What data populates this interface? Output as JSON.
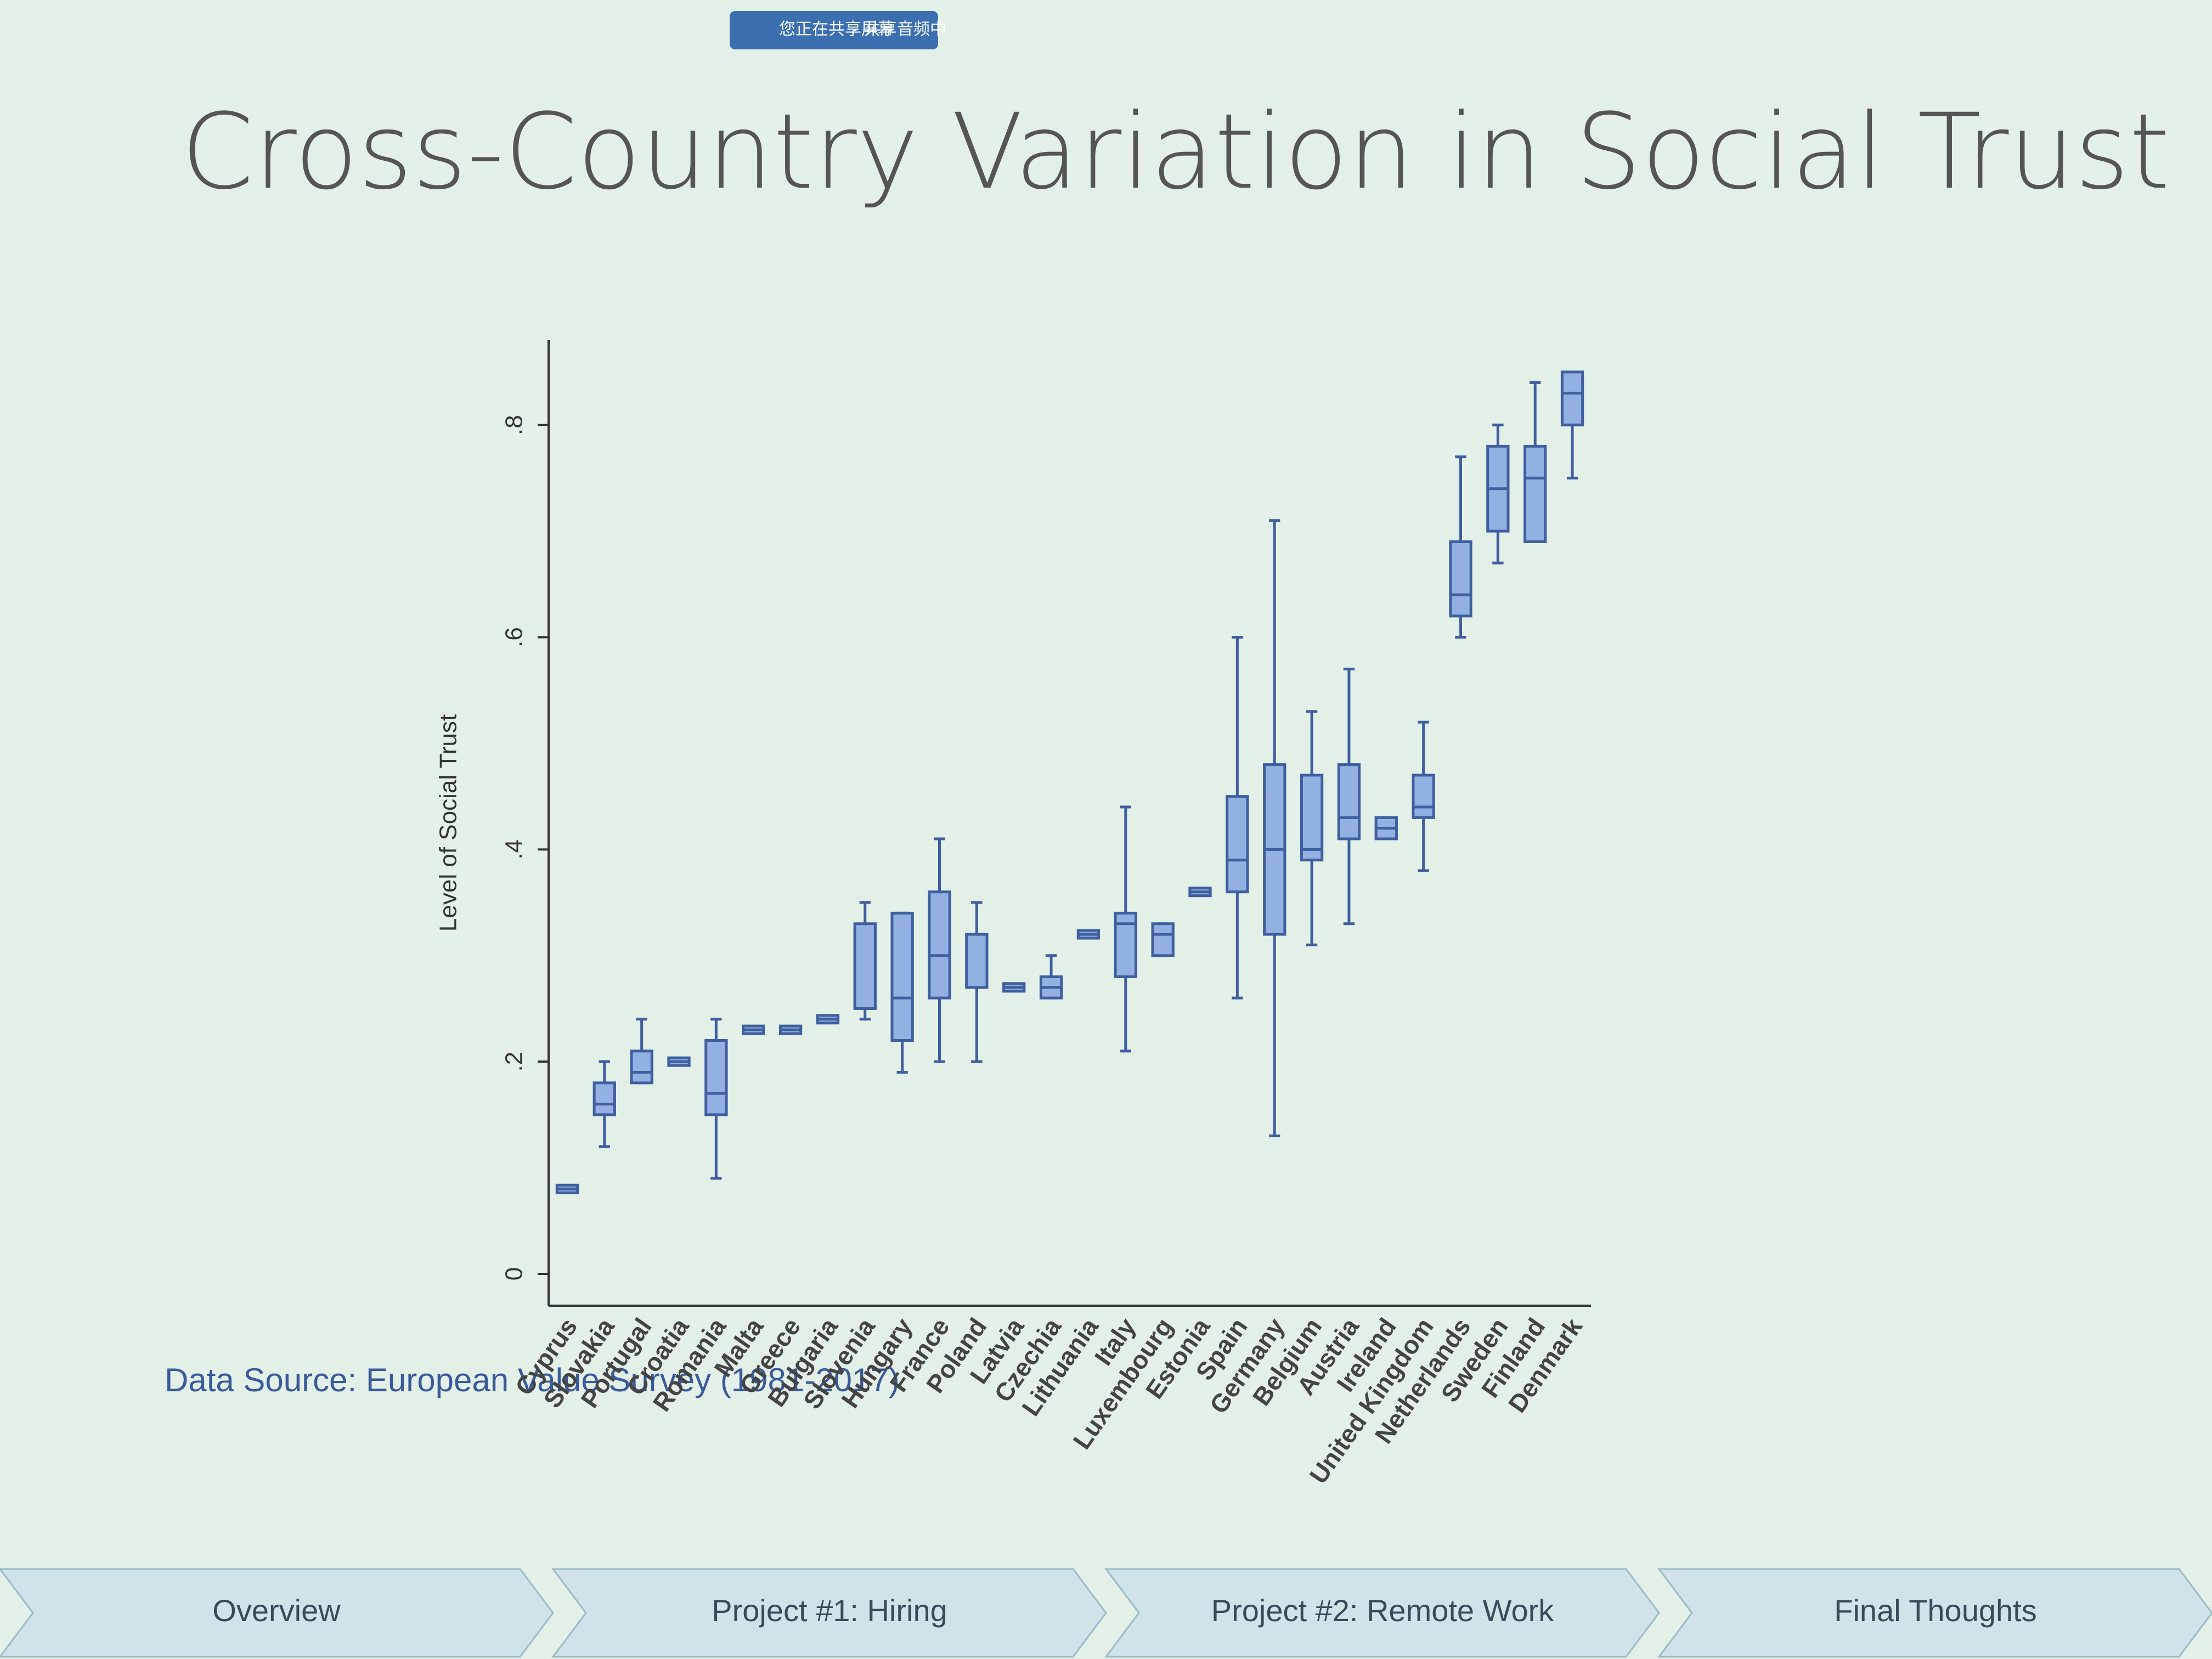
{
  "chart_data": {
    "type": "box",
    "title": "Cross-Country Variation in Social Trust",
    "ylabel": "Level of Social Trust",
    "source_note": "Data Source: European Value Survey (1981-2017)",
    "categories": [
      "Cyprus",
      "Slovakia",
      "Portugal",
      "Croatia",
      "Romania",
      "Malta",
      "Greece",
      "Bulgaria",
      "Slovenia",
      "Hungary",
      "France",
      "Poland",
      "Latvia",
      "Czechia",
      "Lithuania",
      "Italy",
      "Luxembourg",
      "Estonia",
      "Spain",
      "Germany",
      "Belgium",
      "Austria",
      "Ireland",
      "United Kingdom",
      "Netherlands",
      "Sweden",
      "Finland",
      "Denmark"
    ],
    "min": [
      0.08,
      0.12,
      0.18,
      0.2,
      0.09,
      0.23,
      0.23,
      0.24,
      0.24,
      0.19,
      0.2,
      0.2,
      0.27,
      0.26,
      0.32,
      0.21,
      0.3,
      0.36,
      0.26,
      0.13,
      0.31,
      0.33,
      0.41,
      0.38,
      0.6,
      0.67,
      0.69,
      0.75
    ],
    "q1": [
      0.08,
      0.15,
      0.18,
      0.2,
      0.15,
      0.23,
      0.23,
      0.24,
      0.25,
      0.22,
      0.26,
      0.27,
      0.27,
      0.26,
      0.32,
      0.28,
      0.3,
      0.36,
      0.36,
      0.32,
      0.39,
      0.41,
      0.41,
      0.43,
      0.62,
      0.7,
      0.69,
      0.8
    ],
    "median": [
      0.08,
      0.16,
      0.19,
      0.2,
      0.17,
      0.23,
      0.23,
      0.24,
      0.25,
      0.26,
      0.3,
      0.27,
      0.27,
      0.27,
      0.32,
      0.33,
      0.32,
      0.36,
      0.39,
      0.4,
      0.4,
      0.43,
      0.42,
      0.44,
      0.64,
      0.74,
      0.75,
      0.83
    ],
    "q3": [
      0.08,
      0.18,
      0.21,
      0.2,
      0.22,
      0.23,
      0.23,
      0.24,
      0.33,
      0.34,
      0.36,
      0.32,
      0.27,
      0.28,
      0.32,
      0.34,
      0.33,
      0.36,
      0.45,
      0.48,
      0.47,
      0.48,
      0.43,
      0.47,
      0.69,
      0.78,
      0.78,
      0.85
    ],
    "max": [
      0.08,
      0.2,
      0.24,
      0.2,
      0.24,
      0.23,
      0.23,
      0.24,
      0.35,
      0.34,
      0.41,
      0.35,
      0.27,
      0.3,
      0.32,
      0.44,
      0.33,
      0.36,
      0.6,
      0.71,
      0.53,
      0.57,
      0.43,
      0.52,
      0.77,
      0.8,
      0.84,
      0.85
    ],
    "color": "#92b1e2",
    "edge_color": "#3f5f9e",
    "ylim": [
      -0.03,
      0.88
    ],
    "yticks": [
      0,
      {
        "value": 0.2,
        "label": ".2"
      },
      {
        "value": 0.4,
        "label": ".4"
      },
      {
        "value": 0.6,
        "label": ".6"
      },
      {
        "value": 0.8,
        "label": ".8"
      }
    ],
    "grid": false
  },
  "navigation": {
    "tabs": [
      "Overview",
      "Project #1: Hiring",
      "Project #2: Remote Work",
      "Final Thoughts"
    ]
  },
  "screen_share": {
    "status": "您正在共享屏幕",
    "audio": "共享音频中"
  }
}
